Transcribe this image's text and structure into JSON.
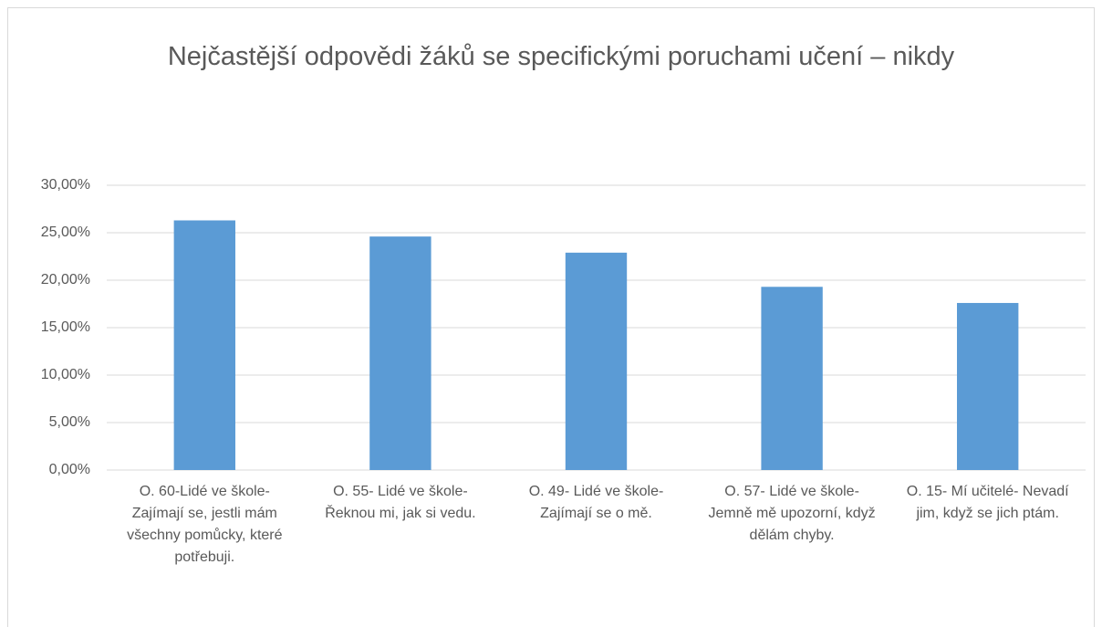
{
  "chart_data": {
    "type": "bar",
    "title": "Nejčastější odpovědi žáků se specifickými poruchami učení – nikdy",
    "categories": [
      "O. 60-Lidé ve škole- Zajímají se, jestli mám všechny pomůcky, které potřebuji.",
      "O. 55- Lidé ve škole- Řeknou mi, jak si vedu.",
      "O. 49- Lidé ve škole- Zajímají se o mě.",
      "O. 57- Lidé ve škole- Jemně mě upozorní, když dělám chyby.",
      "O. 15- Mí učitelé- Nevadí jim, když se jich ptám."
    ],
    "values": [
      26.3,
      24.6,
      22.9,
      19.3,
      17.6
    ],
    "color": "#5b9bd5",
    "ylim": [
      0,
      30
    ],
    "yticks": [
      {
        "value": 0,
        "label": "0,00%"
      },
      {
        "value": 5,
        "label": "5,00%"
      },
      {
        "value": 10,
        "label": "10,00%"
      },
      {
        "value": 15,
        "label": "15,00%"
      },
      {
        "value": 20,
        "label": "20,00%"
      },
      {
        "value": 25,
        "label": "25,00%"
      },
      {
        "value": 30,
        "label": "30,00%"
      }
    ],
    "grid": true
  }
}
